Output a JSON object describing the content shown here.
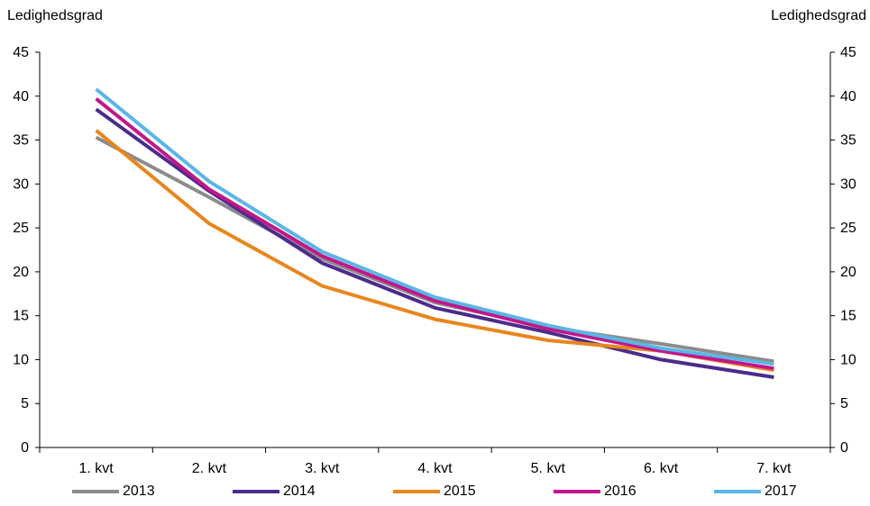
{
  "chart_data": {
    "type": "line",
    "ylabel_left": "Ledighedsgrad",
    "ylabel_right": "Ledighedsgrad",
    "categories": [
      "1. kvt",
      "2. kvt",
      "3. kvt",
      "4. kvt",
      "5. kvt",
      "6. kvt",
      "7. kvt"
    ],
    "ylim": [
      0,
      45
    ],
    "yticks": [
      0,
      5,
      10,
      15,
      20,
      25,
      30,
      35,
      40,
      45
    ],
    "grid": false,
    "legend_position": "bottom",
    "series": [
      {
        "name": "2013",
        "color": "#8c8c8c",
        "values": [
          35.3,
          28.5,
          21.5,
          16.5,
          13.7,
          11.8,
          9.8
        ]
      },
      {
        "name": "2014",
        "color": "#4b2c8a",
        "values": [
          38.5,
          29.2,
          21.0,
          15.9,
          13.1,
          10.0,
          8.0
        ]
      },
      {
        "name": "2015",
        "color": "#e8861e",
        "values": [
          36.1,
          25.5,
          18.4,
          14.6,
          12.2,
          11.0,
          8.8
        ]
      },
      {
        "name": "2016",
        "color": "#c2168a",
        "values": [
          39.7,
          29.4,
          21.8,
          16.7,
          13.5,
          11.0,
          9.0
        ]
      },
      {
        "name": "2017",
        "color": "#5ab6e6",
        "values": [
          40.8,
          30.3,
          22.3,
          17.1,
          13.9,
          11.3,
          9.5
        ]
      }
    ]
  }
}
